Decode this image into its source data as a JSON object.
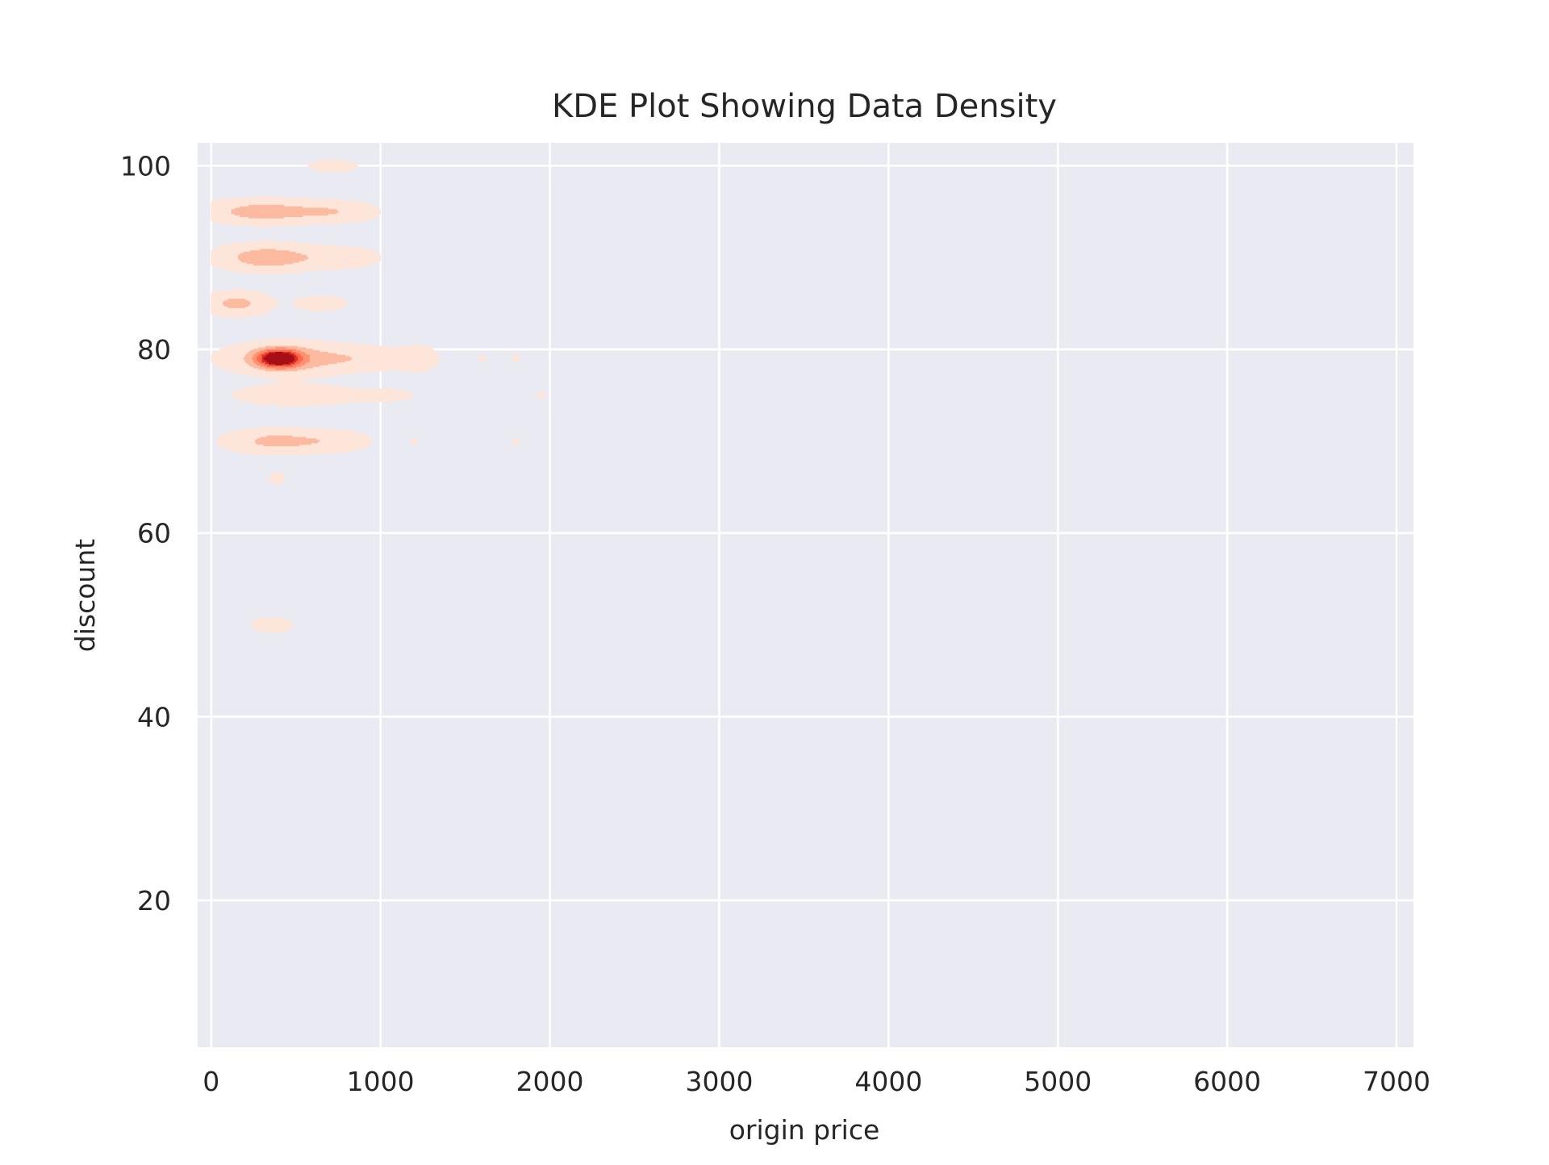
{
  "chart_data": {
    "type": "kde",
    "title": "KDE Plot Showing Data Density",
    "xlabel": "origin price",
    "ylabel": "discount",
    "xlim": [
      -80,
      7100
    ],
    "ylim": [
      4,
      102.5
    ],
    "xticks": [
      0,
      1000,
      2000,
      3000,
      4000,
      5000,
      6000,
      7000
    ],
    "yticks": [
      20,
      40,
      60,
      80,
      100
    ],
    "grid": true,
    "colormap": "Reds",
    "colors": {
      "background": "#eaeaf2",
      "grid": "#ffffff",
      "levels": [
        "#fee5d9",
        "#fcbba1",
        "#fc9272",
        "#fb6a4a",
        "#de2d26",
        "#a50f15"
      ]
    },
    "density_clusters": [
      {
        "x": 300,
        "y": 95,
        "sx": 230,
        "sy": 0.9,
        "peak": 0.34
      },
      {
        "x": 750,
        "y": 95,
        "sx": 170,
        "sy": 0.8,
        "peak": 0.2
      },
      {
        "x": 330,
        "y": 90,
        "sx": 200,
        "sy": 1.0,
        "peak": 0.36
      },
      {
        "x": 780,
        "y": 90,
        "sx": 160,
        "sy": 0.8,
        "peak": 0.18
      },
      {
        "x": 150,
        "y": 85,
        "sx": 130,
        "sy": 0.9,
        "peak": 0.3
      },
      {
        "x": 650,
        "y": 85,
        "sx": 130,
        "sy": 0.7,
        "peak": 0.14
      },
      {
        "x": 720,
        "y": 100,
        "sx": 140,
        "sy": 0.6,
        "peak": 0.12
      },
      {
        "x": 400,
        "y": 79,
        "sx": 85,
        "sy": 0.65,
        "peak": 1.0
      },
      {
        "x": 450,
        "y": 79,
        "sx": 260,
        "sy": 1.2,
        "peak": 0.32
      },
      {
        "x": 950,
        "y": 79,
        "sx": 230,
        "sy": 0.9,
        "peak": 0.16
      },
      {
        "x": 1230,
        "y": 79,
        "sx": 70,
        "sy": 1.0,
        "peak": 0.14
      },
      {
        "x": 500,
        "y": 75,
        "sx": 260,
        "sy": 0.8,
        "peak": 0.2
      },
      {
        "x": 1050,
        "y": 75,
        "sx": 150,
        "sy": 0.6,
        "peak": 0.1
      },
      {
        "x": 380,
        "y": 70,
        "sx": 200,
        "sy": 0.9,
        "peak": 0.3
      },
      {
        "x": 750,
        "y": 70,
        "sx": 150,
        "sy": 0.8,
        "peak": 0.16
      },
      {
        "x": 390,
        "y": 66,
        "sx": 40,
        "sy": 0.55,
        "peak": 0.14
      },
      {
        "x": 360,
        "y": 50,
        "sx": 95,
        "sy": 0.65,
        "peak": 0.16
      }
    ],
    "isolated_points": [
      {
        "x": 80,
        "y": 70
      },
      {
        "x": 1600,
        "y": 79
      },
      {
        "x": 1800,
        "y": 79
      },
      {
        "x": 1200,
        "y": 70
      },
      {
        "x": 1800,
        "y": 70
      },
      {
        "x": 1950,
        "y": 75
      }
    ]
  }
}
